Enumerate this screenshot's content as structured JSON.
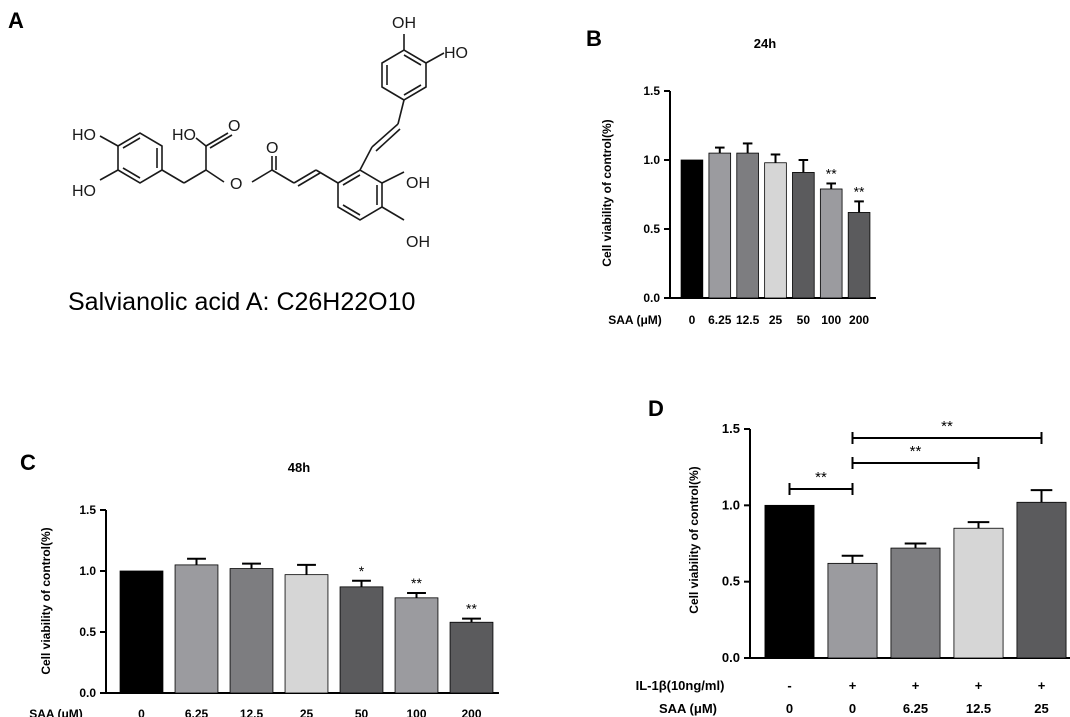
{
  "panels": {
    "A": {
      "letter": "A",
      "caption": "Salvianolic acid A: C26H22O10",
      "atom_labels": [
        "OH",
        "HO",
        "HO",
        "HO",
        "HO",
        "O",
        "O",
        "O",
        "OH",
        "OH"
      ]
    },
    "B": {
      "letter": "B"
    },
    "C": {
      "letter": "C"
    },
    "D": {
      "letter": "D"
    }
  },
  "chart_data": [
    {
      "id": "B",
      "type": "bar",
      "title": "24h",
      "ylabel": "Cell viability of control(%)",
      "xlabel": "SAA (μM)",
      "categories": [
        "0",
        "6.25",
        "12.5",
        "25",
        "50",
        "100",
        "200"
      ],
      "values": [
        1.0,
        1.05,
        1.05,
        0.98,
        0.91,
        0.79,
        0.62
      ],
      "errors": [
        0.0,
        0.04,
        0.07,
        0.06,
        0.09,
        0.04,
        0.08
      ],
      "colors": [
        "#000000",
        "#9b9b9f",
        "#7d7d80",
        "#d6d6d6",
        "#5b5b5d",
        "#9b9b9f",
        "#5b5b5d"
      ],
      "significance": [
        "",
        "",
        "",
        "",
        "",
        "**",
        "**"
      ],
      "ylim": [
        0,
        1.5
      ],
      "yticks": [
        "0.0",
        "0.5",
        "1.0",
        "1.5"
      ]
    },
    {
      "id": "C",
      "type": "bar",
      "title": "48h",
      "ylabel": "Cell viability of control(%)",
      "xlabel": "SAA (μM)",
      "categories": [
        "0",
        "6.25",
        "12.5",
        "25",
        "50",
        "100",
        "200"
      ],
      "values": [
        1.0,
        1.05,
        1.02,
        0.97,
        0.87,
        0.78,
        0.58
      ],
      "errors": [
        0.0,
        0.05,
        0.04,
        0.08,
        0.05,
        0.04,
        0.03
      ],
      "colors": [
        "#000000",
        "#9b9b9f",
        "#7d7d80",
        "#d6d6d6",
        "#5b5b5d",
        "#9b9b9f",
        "#5b5b5d"
      ],
      "significance": [
        "",
        "",
        "",
        "",
        "*",
        "**",
        "**"
      ],
      "ylim": [
        0,
        1.5
      ],
      "yticks": [
        "0.0",
        "0.5",
        "1.0",
        "1.5"
      ]
    },
    {
      "id": "D",
      "type": "bar",
      "title": "",
      "ylabel": "Cell viability of control(%)",
      "xlabel": "SAA (μM)",
      "row1_label": "IL-1β(10ng/ml)",
      "row1": [
        "-",
        "+",
        "+",
        "+",
        "+"
      ],
      "categories": [
        "0",
        "0",
        "6.25",
        "12.5",
        "25"
      ],
      "values": [
        1.0,
        0.62,
        0.72,
        0.85,
        1.02
      ],
      "errors": [
        0.0,
        0.05,
        0.03,
        0.04,
        0.08
      ],
      "colors": [
        "#000000",
        "#9b9b9f",
        "#7d7d80",
        "#d6d6d6",
        "#5b5b5d"
      ],
      "comparisons": [
        {
          "from": 0,
          "to": 1,
          "label": "**"
        },
        {
          "from": 1,
          "to": 3,
          "label": "**"
        },
        {
          "from": 1,
          "to": 4,
          "label": "**"
        }
      ],
      "ylim": [
        0,
        1.5
      ],
      "yticks": [
        "0.0",
        "0.5",
        "1.0",
        "1.5"
      ]
    }
  ]
}
